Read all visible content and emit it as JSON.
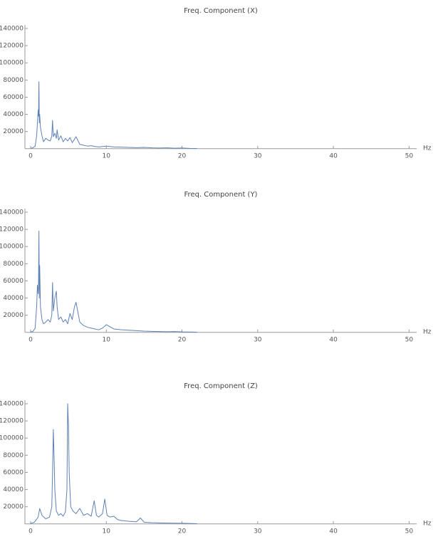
{
  "chart_data": [
    {
      "type": "line",
      "title": "Freq. Component (X)",
      "x_label": "Hz",
      "color": "#5e81b5",
      "xlim": [
        -0.75,
        51
      ],
      "ylim": [
        0,
        140000
      ],
      "xticks": [
        0,
        10,
        20,
        30,
        40,
        50
      ],
      "yticks": [
        20000,
        40000,
        60000,
        80000,
        100000,
        120000,
        140000
      ],
      "x": [
        0,
        0.3,
        0.6,
        0.8,
        0.9,
        1.0,
        1.05,
        1.1,
        1.15,
        1.2,
        1.3,
        1.5,
        1.7,
        2.0,
        2.3,
        2.6,
        2.8,
        2.9,
        3.0,
        3.2,
        3.4,
        3.5,
        3.7,
        4.0,
        4.3,
        4.6,
        4.9,
        5.2,
        5.5,
        5.8,
        6.0,
        6.5,
        7,
        7.5,
        8,
        8.5,
        9,
        9.5,
        10,
        11,
        12,
        13,
        14,
        15,
        16,
        17,
        18,
        19,
        20,
        21,
        22
      ],
      "values": [
        500,
        1000,
        3000,
        15000,
        30000,
        45000,
        38000,
        78000,
        30000,
        40000,
        25000,
        15000,
        8000,
        12000,
        10000,
        9000,
        15000,
        33000,
        14000,
        18000,
        12000,
        22000,
        10000,
        15000,
        8000,
        12000,
        9000,
        13000,
        7000,
        11000,
        14000,
        5000,
        4000,
        3000,
        3500,
        2500,
        2000,
        2500,
        3000,
        2000,
        1800,
        1500,
        1200,
        1500,
        1000,
        800,
        1000,
        600,
        800,
        400,
        200
      ]
    },
    {
      "type": "line",
      "title": "Freq. Component (Y)",
      "x_label": "Hz",
      "color": "#5e81b5",
      "xlim": [
        -0.75,
        51
      ],
      "ylim": [
        0,
        140000
      ],
      "xticks": [
        0,
        10,
        20,
        30,
        40,
        50
      ],
      "yticks": [
        20000,
        40000,
        60000,
        80000,
        100000,
        120000,
        140000
      ],
      "x": [
        0,
        0.3,
        0.6,
        0.8,
        0.9,
        1.0,
        1.05,
        1.1,
        1.15,
        1.2,
        1.3,
        1.5,
        1.7,
        2.0,
        2.3,
        2.6,
        2.8,
        2.9,
        3.0,
        3.2,
        3.4,
        3.5,
        3.7,
        4.0,
        4.3,
        4.6,
        4.9,
        5.2,
        5.5,
        5.8,
        6.0,
        6.5,
        7,
        7.5,
        8,
        8.5,
        9,
        9.5,
        10,
        11,
        12,
        13,
        14,
        15,
        16,
        17,
        18,
        19,
        20,
        21,
        22
      ],
      "values": [
        500,
        1000,
        5000,
        30000,
        55000,
        45000,
        60000,
        118000,
        40000,
        78000,
        30000,
        15000,
        10000,
        12000,
        15000,
        12000,
        20000,
        58000,
        25000,
        40000,
        48000,
        30000,
        15000,
        18000,
        12000,
        15000,
        10000,
        22000,
        15000,
        30000,
        35000,
        12000,
        8000,
        6000,
        5000,
        4000,
        3000,
        5000,
        9000,
        4000,
        3000,
        2500,
        2000,
        1500,
        1200,
        1000,
        800,
        1000,
        600,
        500,
        300
      ]
    },
    {
      "type": "line",
      "title": "Freq. Component (Z)",
      "x_label": "Hz",
      "color": "#5e81b5",
      "xlim": [
        -0.75,
        51
      ],
      "ylim": [
        0,
        140000
      ],
      "xticks": [
        0,
        10,
        20,
        30,
        40,
        50
      ],
      "yticks": [
        20000,
        40000,
        60000,
        80000,
        100000,
        120000,
        140000
      ],
      "x": [
        0,
        0.5,
        1.0,
        1.2,
        1.5,
        2.0,
        2.5,
        2.8,
        2.9,
        3.0,
        3.1,
        3.2,
        3.4,
        3.7,
        4.0,
        4.3,
        4.6,
        4.8,
        4.9,
        5.0,
        5.1,
        5.3,
        5.6,
        6.0,
        6.5,
        7.0,
        7.5,
        8.0,
        8.4,
        8.7,
        9.0,
        9.5,
        9.8,
        10.1,
        10.5,
        11,
        11.5,
        12,
        13,
        14,
        14.5,
        15,
        16,
        17,
        18,
        19,
        20,
        21,
        22
      ],
      "values": [
        500,
        2000,
        8000,
        18000,
        10000,
        6000,
        8000,
        20000,
        60000,
        110000,
        78000,
        40000,
        15000,
        10000,
        12000,
        9000,
        14000,
        40000,
        140000,
        115000,
        60000,
        20000,
        15000,
        12000,
        18000,
        10000,
        12000,
        9000,
        27000,
        10000,
        8000,
        12000,
        29000,
        10000,
        8000,
        9000,
        5000,
        4000,
        3000,
        2500,
        7000,
        2000,
        1500,
        1200,
        1000,
        900,
        800,
        600,
        300
      ]
    }
  ]
}
